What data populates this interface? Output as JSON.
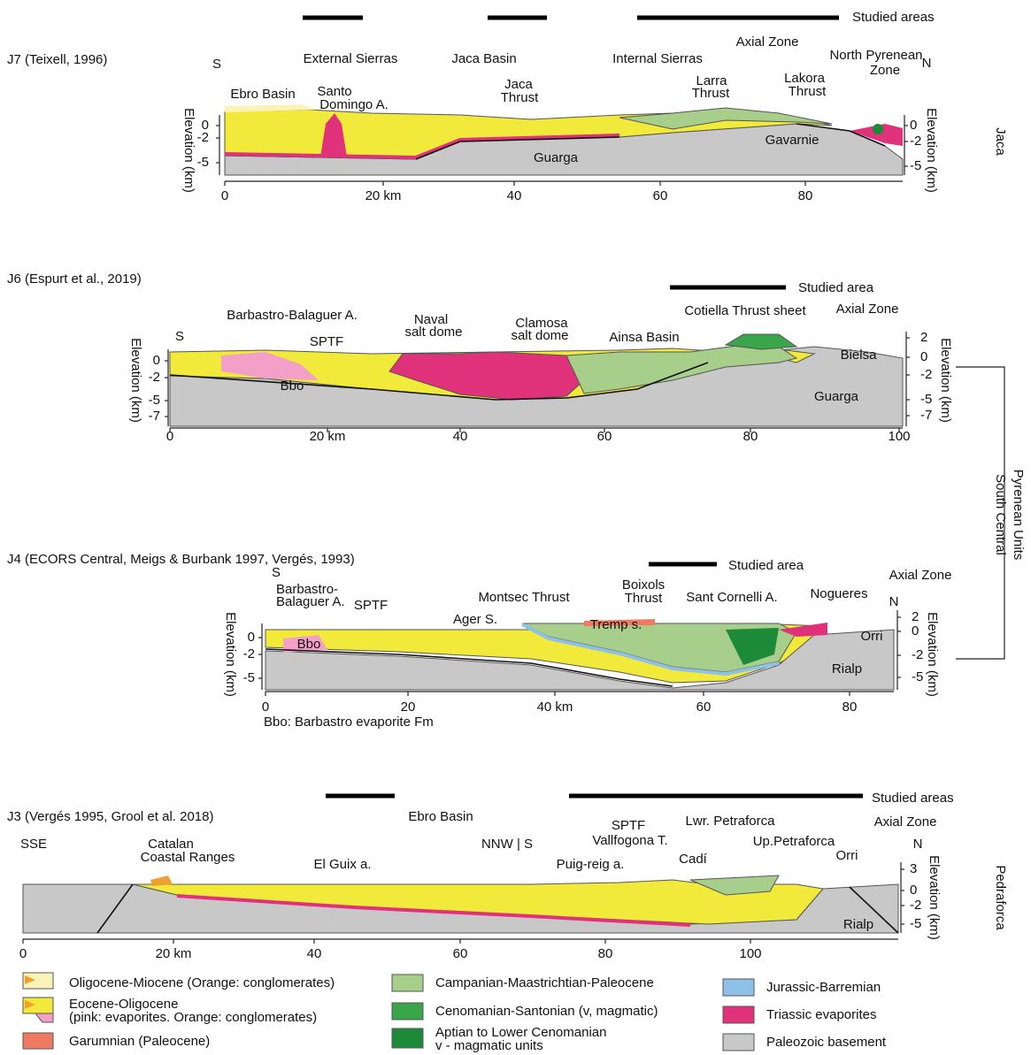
{
  "panels": [
    {
      "title": "J7 (Teixell, 1996)",
      "studied_label": "Studied areas",
      "labels": [
        "S",
        "External Sierras",
        "Jaca Basin",
        "Internal Sierras",
        "Axial Zone",
        "North Pyrenean",
        "Zone",
        "N",
        "Ebro Basin",
        "Santo",
        "Domingo A.",
        "Jaca",
        "Thrust",
        "Larra",
        "Thrust",
        "Lakora",
        "Thrust",
        "Guarga",
        "Gavarnie"
      ],
      "x_ticks": [
        "0",
        "20 km",
        "40",
        "60",
        "80"
      ],
      "y_ticks_left": [
        "0",
        "-2",
        "-5"
      ],
      "y_ticks_right": [
        "0",
        "-2",
        "-5"
      ],
      "axis_label": "Elevation (km)"
    },
    {
      "title": "J6 (Espurt et al., 2019)",
      "studied_label": "Studied area",
      "labels": [
        "S",
        "Barbastro-Balaguer A.",
        "SPTF",
        "Naval",
        "salt dome",
        "Clamosa",
        "salt dome",
        "Ainsa Basin",
        "Cotiella Thrust sheet",
        "Axial Zone",
        "Bbo",
        "Bielsa",
        "Guarga"
      ],
      "x_ticks": [
        "0",
        "20 km",
        "40",
        "60",
        "80",
        "100"
      ],
      "y_ticks_left": [
        "0",
        "-2",
        "-5",
        "-7"
      ],
      "y_ticks_right": [
        "2",
        "0",
        "-2",
        "-5",
        "-7"
      ],
      "axis_label": "Elevation (km)"
    },
    {
      "title": "J4 (ECORS Central,  Meigs & Burbank 1997, Vergés, 1993)",
      "studied_label": "Studied area",
      "labels": [
        "S",
        "Barbastro-",
        "Balaguer A.",
        "SPTF",
        "Ager S.",
        "Montsec Thrust",
        "Tremp s.",
        "Boixols",
        "Thrust",
        "Sant Cornelli A.",
        "Nogueres",
        "Axial Zone",
        "N",
        "Bbo",
        "Orri",
        "Rialp"
      ],
      "x_ticks": [
        "0",
        "20",
        "40 km",
        "60",
        "80"
      ],
      "y_ticks_left": [
        "0",
        "-2",
        "-5"
      ],
      "y_ticks_right": [
        "2",
        "0",
        "-2",
        "-5"
      ],
      "axis_label": "Elevation (km)",
      "note": "Bbo: Barbastro evaporite Fm"
    },
    {
      "title": "J3 (Vergés 1995, Grool et al. 2018)",
      "studied_label": "Studied areas",
      "labels": [
        "Ebro Basin",
        "SSE",
        "Catalan",
        "Coastal Ranges",
        "El Guix a.",
        "NNW | S",
        "SPTF",
        "Vallfogona T.",
        "Puig-reig a.",
        "Cadí",
        "Lwr. Petraforca",
        "Up.Petraforca",
        "Axial Zone",
        "N",
        "Orri",
        "Rialp"
      ],
      "x_ticks": [
        "0",
        "20 km",
        "40",
        "60",
        "80",
        "100"
      ],
      "y_ticks_right": [
        "3",
        "0",
        "-2",
        "-5"
      ],
      "axis_label": "Elevation (km)"
    }
  ],
  "regions": [
    [
      "Jaca"
    ],
    [
      "South Central",
      "Pyrenean Units"
    ],
    [
      "Pedraforca"
    ]
  ],
  "legend": [
    [
      "Oligocene-Miocene (Orange: conglomerates)"
    ],
    [
      "Eocene-Oligocene",
      "(pink: evaporites. Orange: conglomerates)"
    ],
    [
      "Garumnian (Paleocene)"
    ],
    [
      "Campanian-Maastrichtian-Paleocene"
    ],
    [
      "Cenomanian-Santonian (v, magmatic)"
    ],
    [
      "Aptian to Lower Cenomanian",
      "v - magmatic units"
    ],
    [
      "Jurassic-Barremian"
    ],
    [
      "Triassic evaporites"
    ],
    [
      "Paleozoic basement"
    ]
  ]
}
